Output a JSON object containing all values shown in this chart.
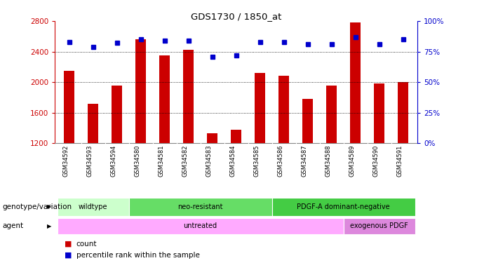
{
  "title": "GDS1730 / 1850_at",
  "samples": [
    "GSM34592",
    "GSM34593",
    "GSM34594",
    "GSM34580",
    "GSM34581",
    "GSM34582",
    "GSM34583",
    "GSM34584",
    "GSM34585",
    "GSM34586",
    "GSM34587",
    "GSM34588",
    "GSM34589",
    "GSM34590",
    "GSM34591"
  ],
  "counts": [
    2150,
    1720,
    1960,
    2560,
    2350,
    2420,
    1330,
    1380,
    2120,
    2080,
    1780,
    1960,
    2780,
    1980,
    2000
  ],
  "percentile_ranks": [
    83,
    79,
    82,
    85,
    84,
    84,
    71,
    72,
    83,
    83,
    81,
    81,
    87,
    81,
    85
  ],
  "ymin": 1200,
  "ymax": 2800,
  "yticks": [
    1200,
    1600,
    2000,
    2400,
    2800
  ],
  "right_yticks": [
    0,
    25,
    50,
    75,
    100
  ],
  "bar_color": "#CC0000",
  "dot_color": "#0000CC",
  "genotype_groups": [
    {
      "label": "wildtype",
      "start": 0,
      "end": 3,
      "color": "#CCFFCC"
    },
    {
      "label": "neo-resistant",
      "start": 3,
      "end": 9,
      "color": "#66DD66"
    },
    {
      "label": "PDGF-A dominant-negative",
      "start": 9,
      "end": 15,
      "color": "#44CC44"
    }
  ],
  "agent_groups": [
    {
      "label": "untreated",
      "start": 0,
      "end": 12,
      "color": "#FFAAFF"
    },
    {
      "label": "exogenous PDGF",
      "start": 12,
      "end": 15,
      "color": "#DD88DD"
    }
  ],
  "genotype_label": "genotype/variation",
  "agent_label": "agent",
  "legend_count_label": "count",
  "legend_pct_label": "percentile rank within the sample",
  "left_axis_color": "#CC0000",
  "right_axis_color": "#0000CC",
  "tick_bg_color": "#C8C8C8",
  "dotted_line_color": "#000000",
  "bar_width": 0.45,
  "n_samples": 15
}
